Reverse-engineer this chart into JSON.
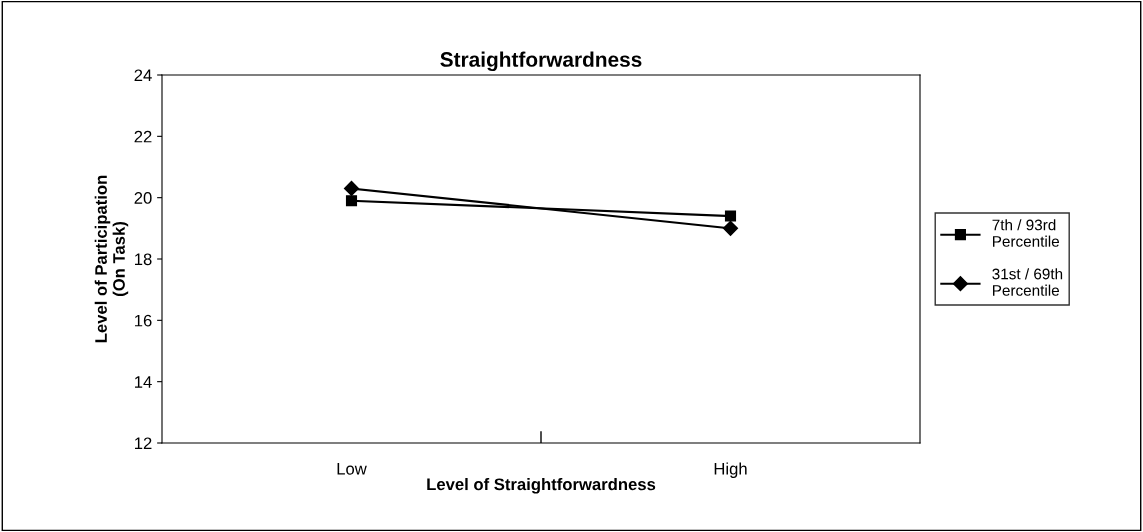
{
  "chart_data": {
    "type": "line",
    "title": "Straightforwardness",
    "xlabel": "Level of Straightforwardness",
    "ylabel": "Level of Participation\n(On Task)",
    "categories": [
      "Low",
      "High"
    ],
    "series": [
      {
        "name": "7th / 93rd\nPercentile",
        "color": "#000000",
        "marker": "square",
        "values": [
          19.9,
          19.4
        ]
      },
      {
        "name": "31st / 69th\nPercentile",
        "color": "#000000",
        "marker": "diamond",
        "values": [
          20.3,
          19.0
        ]
      }
    ],
    "ylim": [
      12,
      24
    ],
    "yticks": [
      12,
      14,
      16,
      18,
      20,
      22,
      24
    ],
    "grid": false,
    "legend": "right",
    "line_style": "solid"
  }
}
